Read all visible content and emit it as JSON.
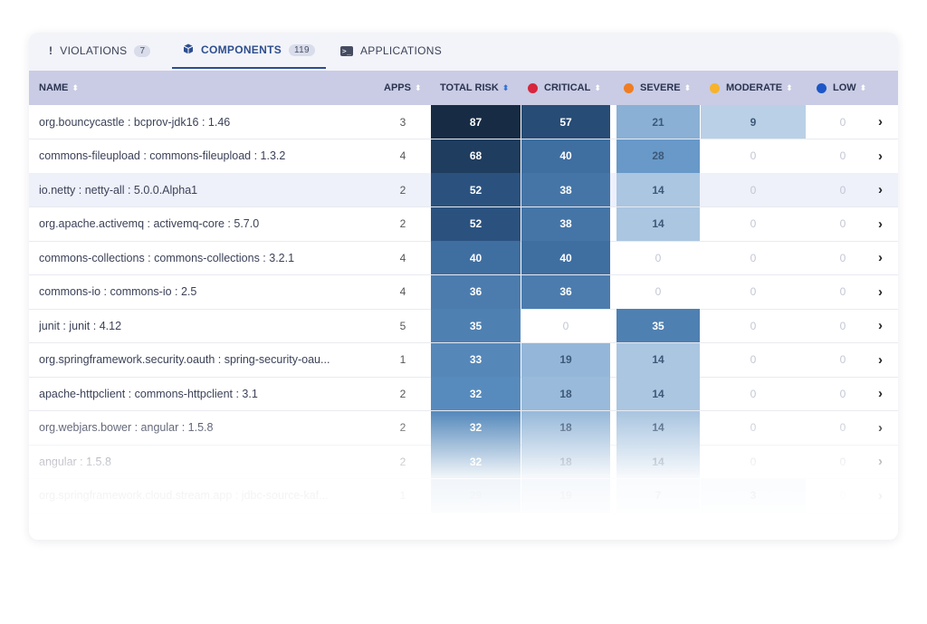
{
  "tabs": [
    {
      "label": "VIOLATIONS",
      "count": "7",
      "icon": "exclamation-icon"
    },
    {
      "label": "COMPONENTS",
      "count": "119",
      "icon": "cube-icon",
      "active": true
    },
    {
      "label": "APPLICATIONS",
      "icon": "terminal-icon"
    }
  ],
  "columns": {
    "name": "NAME",
    "apps": "APPS",
    "total_risk": "TOTAL RISK",
    "critical": "CRITICAL",
    "severe": "SEVERE",
    "moderate": "MODERATE",
    "low": "LOW"
  },
  "colors": {
    "critical": "#d7263d",
    "severe": "#f07d22",
    "moderate": "#f7b32b",
    "low": "#1e56c7"
  },
  "rows": [
    {
      "name": "org.bouncycastle : bcprov-jdk16 : 1.46",
      "apps": "3",
      "total": "87",
      "critical": "57",
      "severe": "21",
      "moderate": "9",
      "low": "0"
    },
    {
      "name": "commons-fileupload : commons-fileupload : 1.3.2",
      "apps": "4",
      "total": "68",
      "critical": "40",
      "severe": "28",
      "moderate": "0",
      "low": "0"
    },
    {
      "name": "io.netty : netty-all : 5.0.0.Alpha1",
      "apps": "2",
      "total": "52",
      "critical": "38",
      "severe": "14",
      "moderate": "0",
      "low": "0"
    },
    {
      "name": "org.apache.activemq : activemq-core : 5.7.0",
      "apps": "2",
      "total": "52",
      "critical": "38",
      "severe": "14",
      "moderate": "0",
      "low": "0"
    },
    {
      "name": "commons-collections : commons-collections : 3.2.1",
      "apps": "4",
      "total": "40",
      "critical": "40",
      "severe": "0",
      "moderate": "0",
      "low": "0"
    },
    {
      "name": "commons-io : commons-io : 2.5",
      "apps": "4",
      "total": "36",
      "critical": "36",
      "severe": "0",
      "moderate": "0",
      "low": "0"
    },
    {
      "name": "junit : junit : 4.12",
      "apps": "5",
      "total": "35",
      "critical": "0",
      "severe": "35",
      "moderate": "0",
      "low": "0"
    },
    {
      "name": "org.springframework.security.oauth : spring-security-oau...",
      "apps": "1",
      "total": "33",
      "critical": "19",
      "severe": "14",
      "moderate": "0",
      "low": "0"
    },
    {
      "name": "apache-httpclient : commons-httpclient : 3.1",
      "apps": "2",
      "total": "32",
      "critical": "18",
      "severe": "14",
      "moderate": "0",
      "low": "0"
    },
    {
      "name": "org.webjars.bower : angular : 1.5.8",
      "apps": "2",
      "total": "32",
      "critical": "18",
      "severe": "14",
      "moderate": "0",
      "low": "0"
    },
    {
      "name": "angular : 1.5.8",
      "apps": "2",
      "total": "32",
      "critical": "18",
      "severe": "14",
      "moderate": "0",
      "low": "0"
    },
    {
      "name": "org.springframework.cloud.stream.app : jdbc-source-kaf...",
      "apps": "1",
      "total": "29",
      "critical": "19",
      "severe": "7",
      "moderate": "3",
      "low": "0"
    }
  ]
}
